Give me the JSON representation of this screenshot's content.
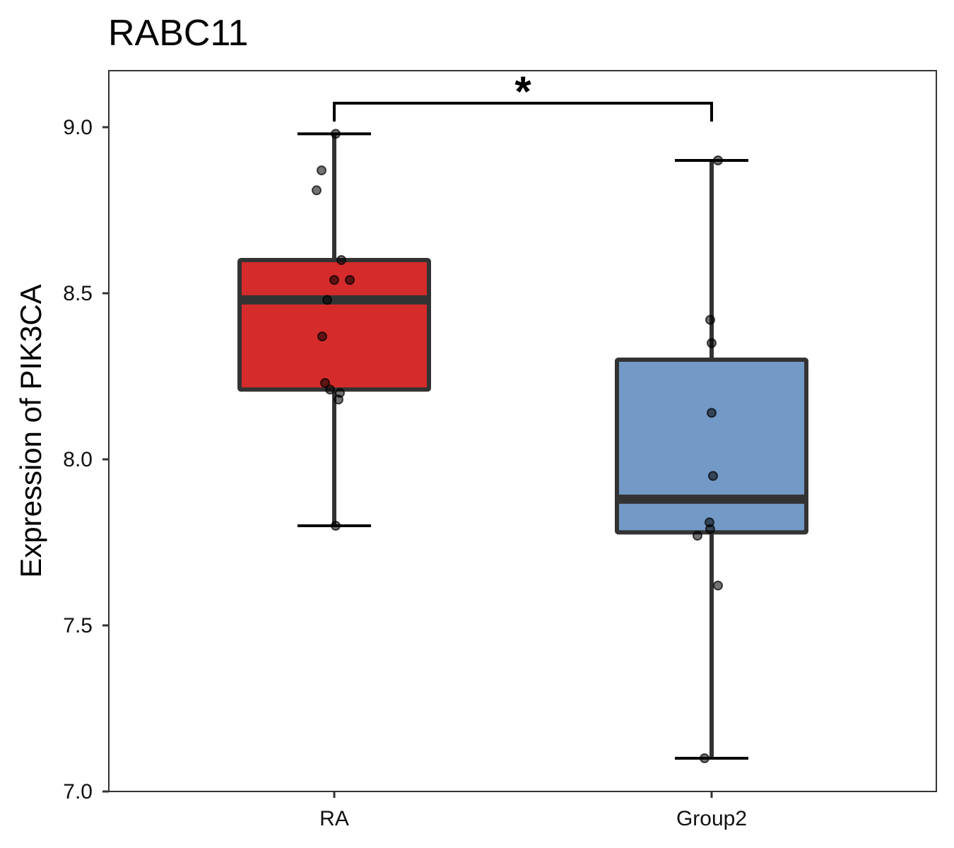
{
  "chart_data": {
    "type": "box",
    "title": "RABC11",
    "xlabel": "",
    "ylabel": "Expression of PIK3CA",
    "ylim": [
      7.0,
      9.16
    ],
    "yticks": [
      7.0,
      7.5,
      8.0,
      8.5,
      9.0
    ],
    "ytick_labels": [
      "7.0",
      "7.5",
      "8.0",
      "8.5",
      "9.0"
    ],
    "categories": [
      "RA",
      "Group2"
    ],
    "grid": false,
    "series": [
      {
        "name": "RA",
        "color": "#D62B2B",
        "whisker_low": 7.8,
        "q1": 8.21,
        "median": 8.48,
        "q3": 8.6,
        "whisker_high": 8.98,
        "points": [
          8.98,
          8.87,
          8.81,
          8.6,
          8.54,
          8.54,
          8.48,
          8.37,
          8.23,
          8.21,
          8.2,
          8.18,
          7.8
        ]
      },
      {
        "name": "Group2",
        "color": "#7399C6",
        "whisker_low": 7.1,
        "q1": 7.78,
        "median": 7.88,
        "q3": 8.3,
        "whisker_high": 8.9,
        "points": [
          8.9,
          8.42,
          8.35,
          8.14,
          7.95,
          7.81,
          7.79,
          7.77,
          7.62,
          7.1
        ]
      }
    ],
    "annotations": [
      {
        "type": "significance",
        "between": [
          "RA",
          "Group2"
        ],
        "label": "*"
      }
    ]
  }
}
